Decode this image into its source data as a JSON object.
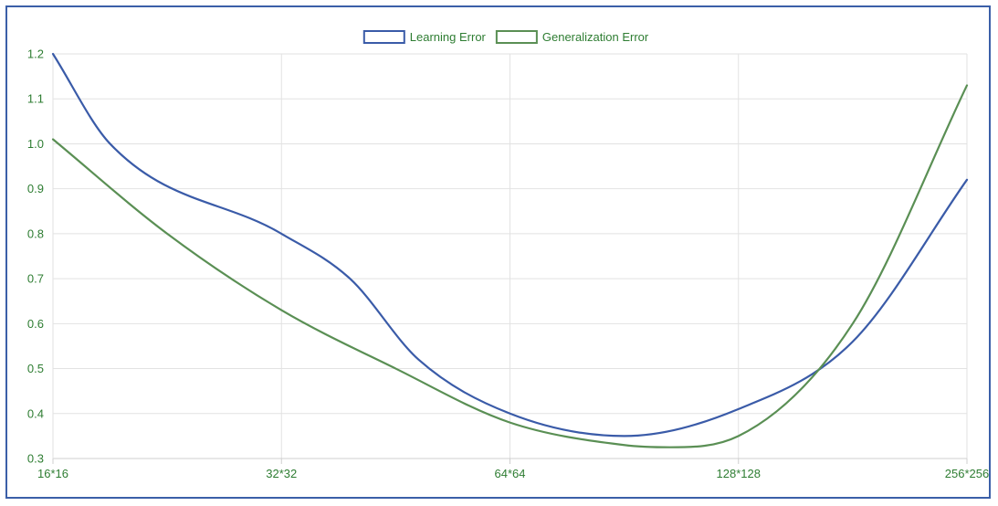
{
  "chart_data": {
    "type": "line",
    "categories": [
      "16*16",
      "32*32",
      "64*64",
      "128*128",
      "256*256"
    ],
    "ylim": [
      0.3,
      1.2
    ],
    "y_ticks": [
      0.3,
      0.4,
      0.5,
      0.6,
      0.7,
      0.8,
      0.9,
      1.0,
      1.1,
      1.2
    ],
    "grid": true,
    "legend_position": "top-center",
    "series": [
      {
        "name": "Learning Error",
        "color": "#3a5ba8",
        "points": [
          {
            "x": 0,
            "y": 1.2
          },
          {
            "x": 0.25,
            "y": 1.0
          },
          {
            "x": 1,
            "y": 0.8
          },
          {
            "x": 1.3,
            "y": 0.7
          },
          {
            "x": 1.6,
            "y": 0.52
          },
          {
            "x": 2,
            "y": 0.4
          },
          {
            "x": 2.5,
            "y": 0.35
          },
          {
            "x": 3,
            "y": 0.41
          },
          {
            "x": 3.5,
            "y": 0.56
          },
          {
            "x": 4,
            "y": 0.92
          }
        ]
      },
      {
        "name": "Generalization Error",
        "color": "#5a8f54",
        "points": [
          {
            "x": 0,
            "y": 1.01
          },
          {
            "x": 0.5,
            "y": 0.8
          },
          {
            "x": 1,
            "y": 0.63
          },
          {
            "x": 1.5,
            "y": 0.5
          },
          {
            "x": 2,
            "y": 0.38
          },
          {
            "x": 2.5,
            "y": 0.33
          },
          {
            "x": 2.7,
            "y": 0.325
          },
          {
            "x": 3,
            "y": 0.35
          },
          {
            "x": 3.5,
            "y": 0.6
          },
          {
            "x": 4,
            "y": 1.13
          }
        ]
      }
    ]
  }
}
